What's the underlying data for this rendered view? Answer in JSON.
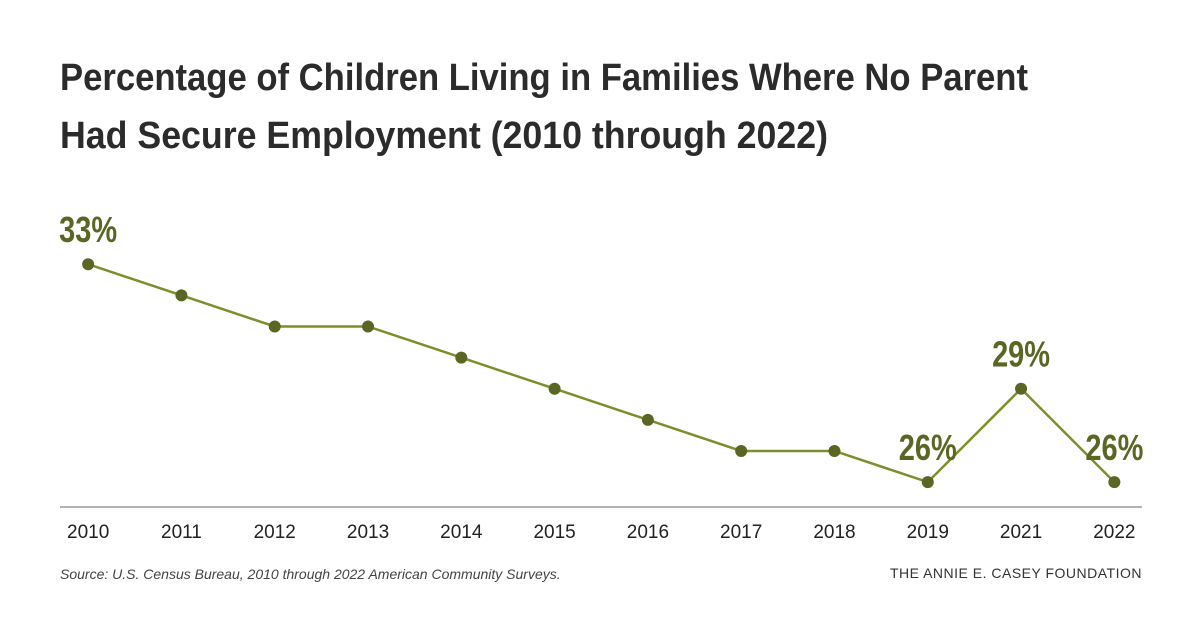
{
  "chart_data": {
    "type": "line",
    "title": [
      "Percentage of Children Living in Families Where No Parent",
      "Had Secure Employment (2010 through 2022)"
    ],
    "categories": [
      "2010",
      "2011",
      "2012",
      "2013",
      "2014",
      "2015",
      "2016",
      "2017",
      "2018",
      "2019",
      "2021",
      "2022"
    ],
    "series": [
      {
        "color": "#7d8f2a",
        "marker_color": "#5a6623",
        "values": [
          33,
          32,
          31,
          31,
          30,
          29,
          28,
          27,
          27,
          26,
          29,
          26
        ],
        "value_labels": [
          "33%",
          null,
          null,
          null,
          null,
          null,
          null,
          null,
          null,
          "26%",
          "29%",
          "26%"
        ]
      }
    ],
    "ylim": [
      25.2,
      34.1
    ],
    "source": "Source: U.S. Census Bureau, 2010 through 2022 American Community Surveys.",
    "brand": "THE ANNIE E. CASEY FOUNDATION"
  }
}
